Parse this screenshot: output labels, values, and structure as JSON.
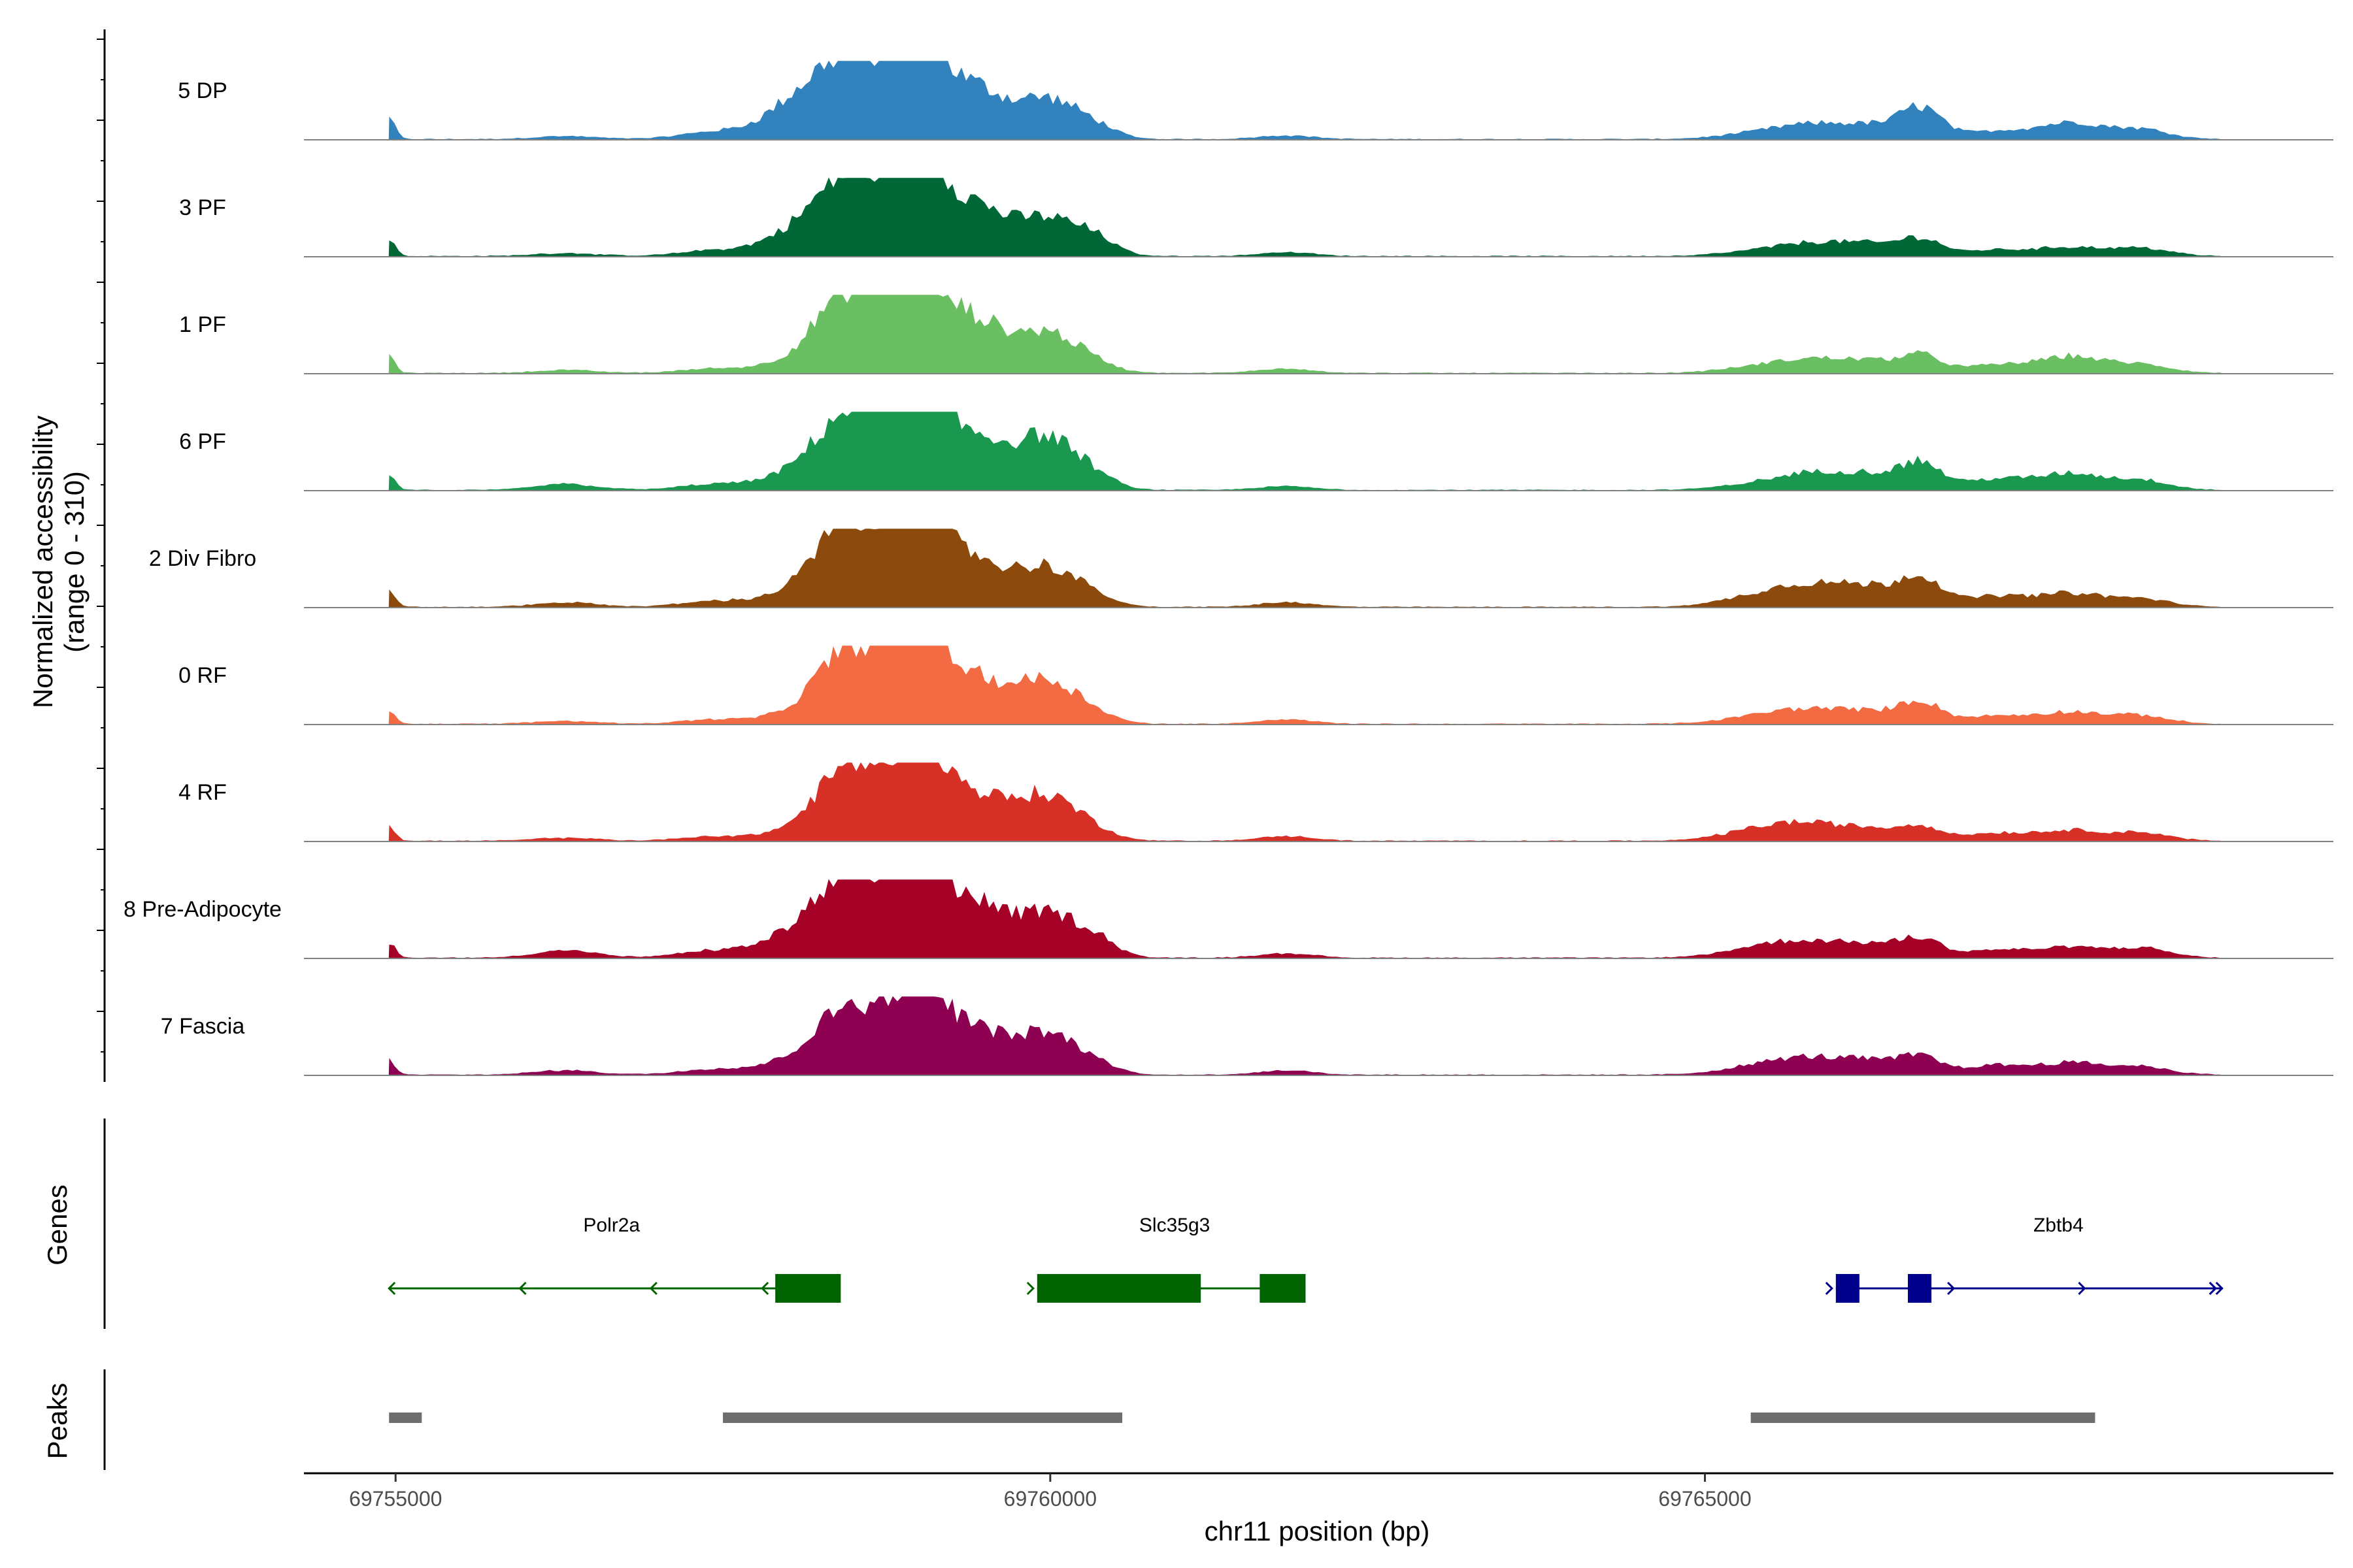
{
  "chart_data": {
    "type": "area",
    "title": "",
    "xlabel": "chr11 position (bp)",
    "ylabel": [
      "Normalized accessibility",
      "(range 0 - 310)"
    ],
    "ylim": [
      0,
      310
    ],
    "xlim": [
      69754300,
      69769800
    ],
    "x_ticks": [
      69755000,
      69760000,
      69765000
    ],
    "x_tick_labels": [
      "69755000",
      "69760000",
      "69765000"
    ],
    "panel_labels": {
      "genes": "Genes",
      "peaks": "Peaks"
    },
    "profile_peaks": {
      "description": "Approximate accessibility peak centers (bp), widths (bp) and relative heights used to draw each track",
      "centers": [
        69754950,
        69756300,
        69757450,
        69758050,
        69758400,
        69758850,
        69759050,
        69759450,
        69759950,
        69760350,
        69761800,
        69765500,
        69765900,
        69766300,
        69766650,
        69767200,
        69767800,
        69768350
      ],
      "widths": [
        18,
        90,
        100,
        90,
        80,
        110,
        70,
        70,
        100,
        60,
        80,
        120,
        100,
        80,
        60,
        90,
        100,
        80
      ]
    },
    "tracks": [
      {
        "name": "5 DP",
        "color": "#3182bd",
        "max_value": 310,
        "heights": [
          0.28,
          0.04,
          0.1,
          0.45,
          0.72,
          0.95,
          0.6,
          0.5,
          0.55,
          0.1,
          0.05,
          0.1,
          0.15,
          0.14,
          0.4,
          0.1,
          0.22,
          0.12
        ]
      },
      {
        "name": "3 PF",
        "color": "#006837",
        "max_value": 295,
        "heights": [
          0.25,
          0.04,
          0.08,
          0.3,
          0.7,
          0.95,
          0.62,
          0.5,
          0.52,
          0.16,
          0.05,
          0.08,
          0.14,
          0.12,
          0.22,
          0.08,
          0.12,
          0.1
        ]
      },
      {
        "name": "1 PF",
        "color": "#6abf62",
        "max_value": 305,
        "heights": [
          0.22,
          0.04,
          0.06,
          0.15,
          0.76,
          0.95,
          0.6,
          0.52,
          0.56,
          0.06,
          0.06,
          0.1,
          0.14,
          0.12,
          0.22,
          0.1,
          0.22,
          0.1
        ]
      },
      {
        "name": "6 PF",
        "color": "#1a9850",
        "max_value": 300,
        "heights": [
          0.2,
          0.08,
          0.08,
          0.2,
          0.7,
          0.9,
          0.6,
          0.5,
          0.72,
          0.08,
          0.05,
          0.1,
          0.18,
          0.16,
          0.34,
          0.14,
          0.22,
          0.12
        ]
      },
      {
        "name": "2 Div Fibro",
        "color": "#8c4a0c",
        "max_value": 310,
        "heights": [
          0.22,
          0.06,
          0.08,
          0.18,
          0.78,
          0.95,
          0.6,
          0.45,
          0.55,
          0.06,
          0.06,
          0.18,
          0.22,
          0.2,
          0.38,
          0.14,
          0.18,
          0.1
        ]
      },
      {
        "name": "0 RF",
        "color": "#f26b43",
        "max_value": 310,
        "heights": [
          0.2,
          0.04,
          0.06,
          0.12,
          0.68,
          0.92,
          0.58,
          0.42,
          0.6,
          0.06,
          0.06,
          0.12,
          0.14,
          0.12,
          0.28,
          0.1,
          0.16,
          0.1
        ]
      },
      {
        "name": "4 RF",
        "color": "#d73027",
        "max_value": 300,
        "heights": [
          0.18,
          0.04,
          0.06,
          0.12,
          0.68,
          0.88,
          0.6,
          0.44,
          0.62,
          0.06,
          0.06,
          0.18,
          0.14,
          0.12,
          0.18,
          0.1,
          0.14,
          0.1
        ]
      },
      {
        "name": "8 Pre-Adipocyte",
        "color": "#a50026",
        "max_value": 290,
        "heights": [
          0.2,
          0.1,
          0.1,
          0.3,
          0.72,
          0.9,
          0.65,
          0.54,
          0.6,
          0.18,
          0.06,
          0.16,
          0.14,
          0.14,
          0.24,
          0.1,
          0.14,
          0.12
        ]
      },
      {
        "name": "7 Fascia",
        "color": "#8e0152",
        "max_value": 300,
        "heights": [
          0.2,
          0.06,
          0.08,
          0.18,
          0.6,
          0.82,
          0.58,
          0.44,
          0.56,
          0.08,
          0.06,
          0.14,
          0.16,
          0.14,
          0.22,
          0.12,
          0.16,
          0.1
        ]
      }
    ],
    "genes": [
      {
        "name": "Polr2a",
        "strand": "-",
        "color": "#006400",
        "start": 69754950,
        "end": 69758350,
        "label_pos": 69756650,
        "exons": [
          [
            69757900,
            69758400
          ]
        ],
        "arrow_positions": [
          69755950,
          69756950,
          69757800
        ]
      },
      {
        "name": "Slc35g3",
        "strand": "+",
        "color": "#006400",
        "start": 69759900,
        "end": 69761950,
        "label_pos": 69760950,
        "exons": [
          [
            69759900,
            69761150
          ],
          [
            69761600,
            69761950
          ]
        ],
        "arrow_positions": []
      },
      {
        "name": "Zbtb4",
        "strand": "+",
        "color": "#00008b",
        "start": 69766000,
        "end": 69768950,
        "label_pos": 69767700,
        "exons": [
          [
            69766000,
            69766180
          ],
          [
            69766550,
            69766730
          ]
        ],
        "arrow_positions": [
          69766900,
          69767900,
          69768900
        ]
      }
    ],
    "peaks": [
      [
        69754950,
        69755200
      ],
      [
        69757500,
        69760550
      ],
      [
        69765350,
        69767980
      ]
    ]
  }
}
